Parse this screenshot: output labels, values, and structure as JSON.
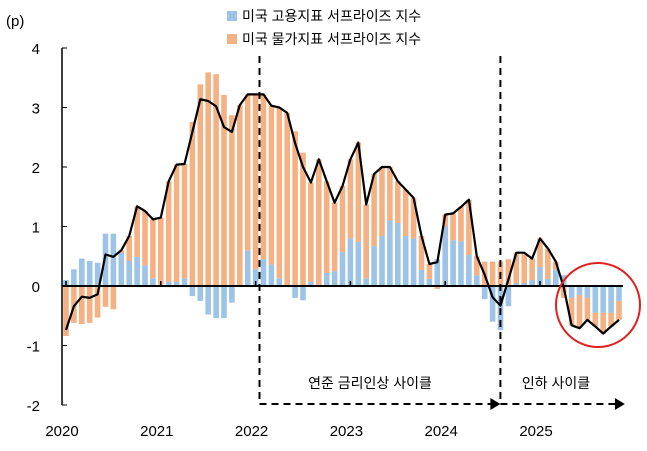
{
  "chart_data": {
    "type": "bar",
    "stacked": true,
    "unit_label": "(p)",
    "ylim": [
      -2,
      4
    ],
    "yticks": [
      -2,
      -1,
      0,
      1,
      2,
      3,
      4
    ],
    "xtick_labels": [
      "2020",
      "2021",
      "2022",
      "2023",
      "2024",
      "2025"
    ],
    "x_start": "2020-01",
    "x_step": "month",
    "series": [
      {
        "name": "미국 고용지표 서프라이즈 지수",
        "color": "#9DC3E6",
        "values": [
          0.1,
          0.28,
          0.46,
          0.42,
          0.39,
          0.88,
          0.88,
          0.56,
          0.42,
          0.49,
          0.35,
          0.13,
          0.02,
          0.07,
          0.07,
          0.13,
          -0.17,
          -0.25,
          -0.48,
          -0.54,
          -0.54,
          -0.28,
          0.0,
          0.6,
          0.28,
          0.45,
          0.36,
          0.13,
          0.0,
          -0.2,
          -0.24,
          0.07,
          0.0,
          0.22,
          0.25,
          0.57,
          0.8,
          0.74,
          0.13,
          0.67,
          0.84,
          1.1,
          1.06,
          0.84,
          0.8,
          0.27,
          0.12,
          0.45,
          1.0,
          0.77,
          0.75,
          0.52,
          0.18,
          -0.22,
          -0.6,
          -0.74,
          -0.34,
          0.05,
          0.05,
          0.1,
          0.32,
          0.12,
          0.28,
          0.18,
          -0.2,
          -0.15,
          -0.2,
          -0.45,
          -0.45,
          -0.45,
          -0.25
        ]
      },
      {
        "name": "미국 물가지표 서프라이즈 지수",
        "color": "#F4B183",
        "values": [
          -0.84,
          -0.62,
          -0.64,
          -0.62,
          -0.53,
          -0.35,
          -0.39,
          0.04,
          0.42,
          0.85,
          0.91,
          0.99,
          1.13,
          1.69,
          1.97,
          1.92,
          2.76,
          3.39,
          3.59,
          3.56,
          3.21,
          2.87,
          3.04,
          2.62,
          2.94,
          2.77,
          2.67,
          2.87,
          2.91,
          2.6,
          2.24,
          1.67,
          2.13,
          1.54,
          1.15,
          1.11,
          1.33,
          1.67,
          1.24,
          1.21,
          1.16,
          0.9,
          0.7,
          0.78,
          0.68,
          0.57,
          0.25,
          -0.05,
          0.2,
          0.45,
          0.58,
          0.93,
          0.32,
          0.41,
          0.41,
          0.41,
          0.45,
          0.51,
          0.51,
          0.36,
          0.48,
          0.51,
          0.13,
          -0.2,
          -0.46,
          -0.56,
          -0.37,
          -0.23,
          -0.35,
          -0.23,
          -0.32
        ]
      }
    ],
    "total_line": {
      "color": "#000000",
      "description_visible": false
    },
    "annotations": {
      "hike_cycle": {
        "label": "연준 금리인상 사이클",
        "start_month_index": 25,
        "end_month_index": 56
      },
      "cut_cycle": {
        "label": "인하 사이클",
        "start_month_index": 56,
        "end_month_index": 71
      },
      "highlight_circle_color": "#E02020"
    },
    "legend_position": "top-center"
  }
}
